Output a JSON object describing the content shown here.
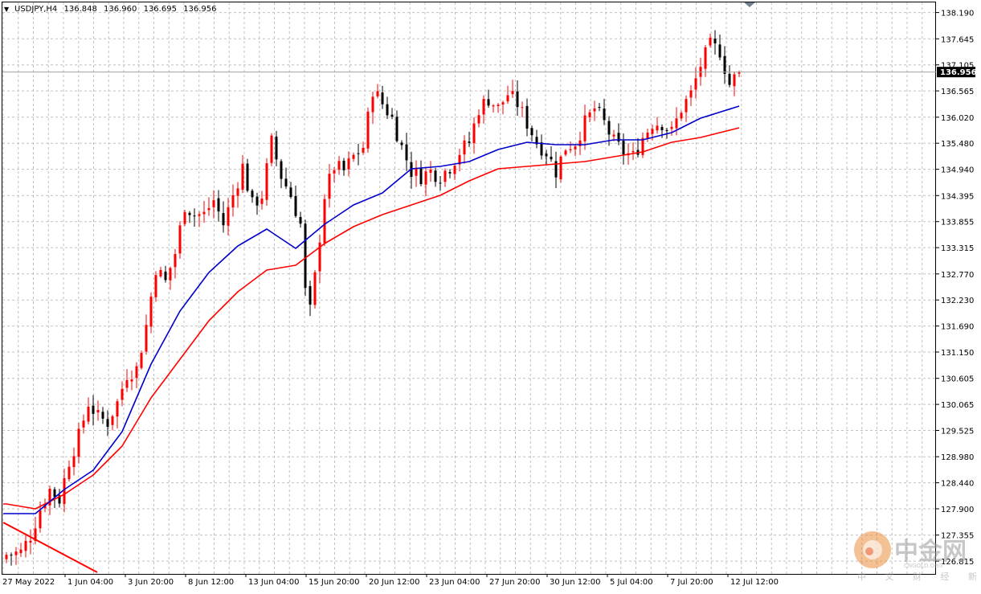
{
  "header": {
    "symbol": "USDJPY,H4",
    "open": "136.848",
    "high": "136.960",
    "low": "136.695",
    "close": "136.956"
  },
  "current_price": "136.956",
  "watermark": {
    "name": "中金网",
    "latin": "CNGOLD.ORG",
    "tagline": "中 文 财 经 新 媒 体"
  },
  "colors": {
    "background": "#ffffff",
    "grid": "#c0c0c0",
    "bull": "#ff0000",
    "bear": "#000000",
    "ma_fast": "#0000cc",
    "ma_slow": "#ff0000",
    "price_badge": "#000000"
  },
  "chart_data": {
    "type": "candlestick",
    "timeframe": "H4",
    "ylim": [
      126.55,
      138.4
    ],
    "y_ticks": [
      "138.190",
      "137.645",
      "137.105",
      "136.565",
      "136.020",
      "135.480",
      "134.940",
      "134.395",
      "133.855",
      "133.315",
      "132.770",
      "132.230",
      "131.690",
      "131.150",
      "130.605",
      "130.065",
      "129.525",
      "128.980",
      "128.440",
      "127.900",
      "127.355",
      "126.815"
    ],
    "x_ticks": [
      "27 May 2022",
      "1 Jun 04:00",
      "3 Jun 20:00",
      "8 Jun 12:00",
      "13 Jun 04:00",
      "15 Jun 20:00",
      "20 Jun 12:00",
      "23 Jun 04:00",
      "27 Jun 20:00",
      "30 Jun 12:00",
      "5 Jul 04:00",
      "7 Jul 20:00",
      "12 Jul 12:00"
    ],
    "close_anchors": [
      [
        0,
        126.95
      ],
      [
        3,
        127.0
      ],
      [
        5,
        127.35
      ],
      [
        7,
        127.9
      ],
      [
        9,
        128.3
      ],
      [
        11,
        128.1
      ],
      [
        13,
        128.9
      ],
      [
        15,
        129.4
      ],
      [
        17,
        130.1
      ],
      [
        19,
        129.8
      ],
      [
        21,
        129.7
      ],
      [
        23,
        130.1
      ],
      [
        25,
        130.7
      ],
      [
        27,
        130.8
      ],
      [
        29,
        131.7
      ],
      [
        31,
        132.9
      ],
      [
        33,
        132.6
      ],
      [
        35,
        133.2
      ],
      [
        37,
        134.2
      ],
      [
        39,
        134.0
      ],
      [
        41,
        134.0
      ],
      [
        43,
        134.3
      ],
      [
        45,
        133.8
      ],
      [
        47,
        134.4
      ],
      [
        49,
        135.0
      ],
      [
        51,
        134.2
      ],
      [
        53,
        134.4
      ],
      [
        55,
        135.5
      ],
      [
        57,
        134.8
      ],
      [
        59,
        134.4
      ],
      [
        61,
        133.8
      ],
      [
        62,
        132.4
      ],
      [
        63,
        132.0
      ],
      [
        64,
        132.7
      ],
      [
        66,
        134.4
      ],
      [
        68,
        135.0
      ],
      [
        70,
        134.9
      ],
      [
        72,
        135.2
      ],
      [
        74,
        135.4
      ],
      [
        76,
        136.6
      ],
      [
        78,
        136.3
      ],
      [
        80,
        136.0
      ],
      [
        82,
        135.4
      ],
      [
        84,
        134.9
      ],
      [
        86,
        134.8
      ],
      [
        88,
        134.9
      ],
      [
        90,
        134.8
      ],
      [
        92,
        135.0
      ],
      [
        94,
        135.3
      ],
      [
        96,
        135.5
      ],
      [
        98,
        136.2
      ],
      [
        100,
        136.4
      ],
      [
        102,
        136.2
      ],
      [
        104,
        136.5
      ],
      [
        106,
        136.3
      ],
      [
        108,
        135.9
      ],
      [
        110,
        135.5
      ],
      [
        112,
        135.3
      ],
      [
        114,
        134.9
      ],
      [
        116,
        135.4
      ],
      [
        118,
        135.5
      ],
      [
        120,
        135.9
      ],
      [
        122,
        136.2
      ],
      [
        124,
        135.9
      ],
      [
        126,
        135.5
      ],
      [
        128,
        135.3
      ],
      [
        130,
        135.2
      ],
      [
        132,
        135.6
      ],
      [
        134,
        135.9
      ],
      [
        136,
        135.9
      ],
      [
        138,
        135.7
      ],
      [
        140,
        136.2
      ],
      [
        142,
        136.5
      ],
      [
        144,
        137.1
      ],
      [
        146,
        137.5
      ],
      [
        148,
        137.4
      ],
      [
        150,
        136.7
      ],
      [
        152,
        136.956
      ]
    ],
    "ma_fast_anchors": [
      [
        0,
        127.8
      ],
      [
        6,
        127.8
      ],
      [
        12,
        128.3
      ],
      [
        18,
        128.7
      ],
      [
        24,
        129.5
      ],
      [
        30,
        130.9
      ],
      [
        36,
        132.0
      ],
      [
        42,
        132.8
      ],
      [
        48,
        133.35
      ],
      [
        54,
        133.7
      ],
      [
        60,
        133.3
      ],
      [
        66,
        133.8
      ],
      [
        72,
        134.2
      ],
      [
        78,
        134.45
      ],
      [
        84,
        134.95
      ],
      [
        90,
        135.0
      ],
      [
        96,
        135.1
      ],
      [
        102,
        135.35
      ],
      [
        108,
        135.5
      ],
      [
        114,
        135.45
      ],
      [
        120,
        135.45
      ],
      [
        126,
        135.55
      ],
      [
        132,
        135.55
      ],
      [
        138,
        135.7
      ],
      [
        144,
        136.0
      ],
      [
        152,
        136.25
      ]
    ],
    "ma_slow_anchors": [
      [
        0,
        128.0
      ],
      [
        6,
        127.9
      ],
      [
        12,
        128.2
      ],
      [
        18,
        128.6
      ],
      [
        24,
        129.2
      ],
      [
        30,
        130.2
      ],
      [
        36,
        131.0
      ],
      [
        42,
        131.8
      ],
      [
        48,
        132.4
      ],
      [
        54,
        132.85
      ],
      [
        60,
        132.95
      ],
      [
        66,
        133.4
      ],
      [
        72,
        133.75
      ],
      [
        78,
        134.0
      ],
      [
        84,
        134.2
      ],
      [
        90,
        134.4
      ],
      [
        96,
        134.7
      ],
      [
        102,
        134.95
      ],
      [
        108,
        135.0
      ],
      [
        114,
        135.05
      ],
      [
        120,
        135.1
      ],
      [
        126,
        135.2
      ],
      [
        132,
        135.3
      ],
      [
        138,
        135.5
      ],
      [
        144,
        135.6
      ],
      [
        152,
        135.8
      ]
    ]
  }
}
